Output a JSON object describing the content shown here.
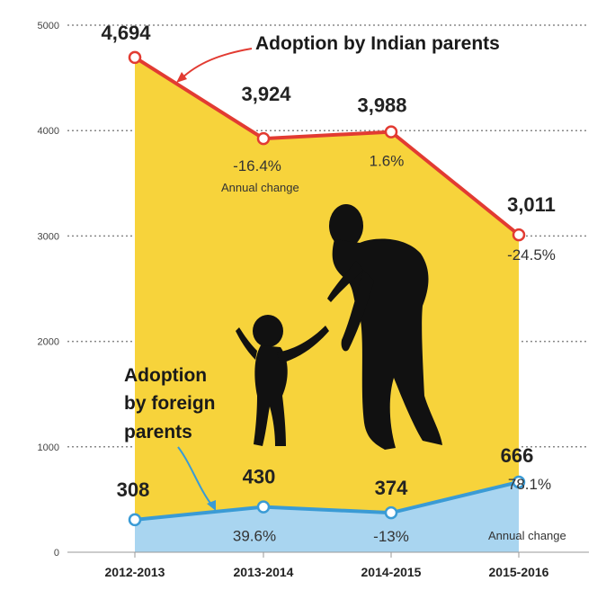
{
  "chart_data": {
    "type": "area",
    "x": [
      "2012-2013",
      "2013-2014",
      "2014-2015",
      "2015-2016"
    ],
    "ylim": [
      0,
      5000
    ],
    "yticks": [
      "0",
      "1000",
      "2000",
      "3000",
      "4000",
      "5000"
    ],
    "grid": true,
    "series": [
      {
        "name": "Adoption by Indian parents",
        "values": [
          4694,
          3924,
          3988,
          3011
        ],
        "value_labels": [
          "4,694",
          "3,924",
          "3,988",
          "3,011"
        ],
        "changes": [
          "",
          "-16.4%",
          "1.6%",
          "-24.5%"
        ],
        "color": "#e23b32",
        "fill": "#f7d33b"
      },
      {
        "name": "Adoption by foreign parents",
        "name_lines": [
          "Adoption",
          "by foreign",
          "parents"
        ],
        "values": [
          308,
          430,
          374,
          666
        ],
        "value_labels": [
          "308",
          "430",
          "374",
          "666"
        ],
        "changes": [
          "",
          "39.6%",
          "-13%",
          "78.1%"
        ],
        "color": "#3a9bd5",
        "fill": "#a9d5f0"
      }
    ],
    "annotations": [
      "Annual change",
      "Annual change"
    ]
  }
}
